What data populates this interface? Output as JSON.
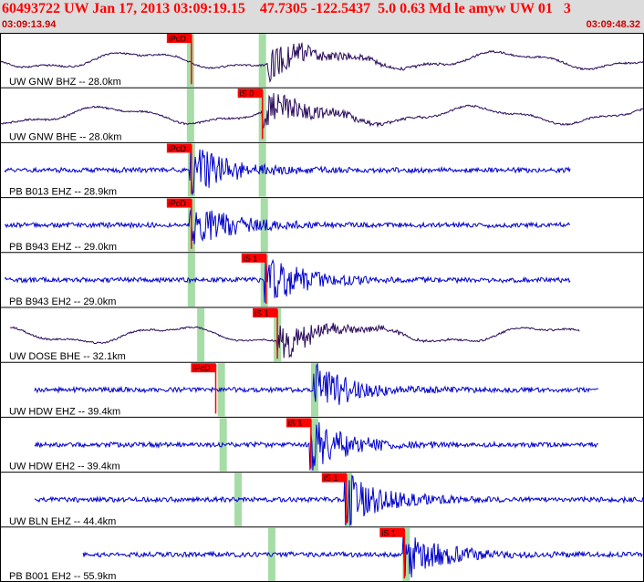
{
  "header": {
    "title": "60493722 UW Jan 17, 2013 03:09:19.15    47.7305 -122.5437  5.0 0.63 Md le amyw UW 01   3",
    "start_time": "03:09:13.94",
    "end_time": "03:09:48.32"
  },
  "colors": {
    "broadband_trace": "#2a0a5a",
    "shortperiod_trace": "#0000cc",
    "pick_marker": "#ff0000",
    "pick_label_bg": "#ff0000",
    "window_band": "#a6dca6",
    "header_bg": "#dcdcdc",
    "title_text": "#ff0000"
  },
  "chart_data": {
    "type": "line",
    "x_range_s": [
      0,
      34.38
    ],
    "traces": [
      {
        "label": "UW GNW BHZ -- 28.0km",
        "kind": "broadband",
        "start_s": 0,
        "end_s": 34.38,
        "pick": {
          "label": "iPcD",
          "time_s": 10.2
        },
        "bands_s": [
          10.15,
          14.0
        ],
        "arrival_s": 14.3
      },
      {
        "label": "UW GNW BHE -- 28.0km",
        "kind": "broadband",
        "start_s": 0,
        "end_s": 34.38,
        "pick": {
          "label": "iS 0",
          "time_s": 14.0
        },
        "bands_s": [
          10.15,
          14.0
        ],
        "arrival_s": 14.0
      },
      {
        "label": "PB B013 EHZ -- 28.9km",
        "kind": "shortperiod",
        "start_s": 0.2,
        "end_s": 30.5,
        "pick": {
          "label": "iPcD",
          "time_s": 10.2
        },
        "bands_s": [
          10.2,
          14.0
        ],
        "arrival_s": 10.2
      },
      {
        "label": "PB B943 EHZ -- 29.0km",
        "kind": "shortperiod",
        "start_s": 0.2,
        "end_s": 30.5,
        "pick": {
          "label": "iPcD",
          "time_s": 10.2
        },
        "bands_s": [
          10.2,
          14.1
        ],
        "arrival_s": 10.2
      },
      {
        "label": "PB B943 EH2 -- 29.0km",
        "kind": "shortperiod",
        "start_s": 0.2,
        "end_s": 30.5,
        "pick": {
          "label": "iS 1",
          "time_s": 14.2
        },
        "bands_s": [
          10.2,
          14.1
        ],
        "arrival_s": 14.2
      },
      {
        "label": "UW DOSE BHE -- 32.1km",
        "kind": "broadband",
        "start_s": 0.5,
        "end_s": 31.0,
        "pick": {
          "label": "iS 1",
          "time_s": 14.8
        },
        "bands_s": [
          10.7,
          14.8
        ],
        "arrival_s": 14.8
      },
      {
        "label": "UW HDW EHZ -- 39.4km",
        "kind": "shortperiod",
        "start_s": 1.8,
        "end_s": 32.0,
        "pick": {
          "label": "iPcD",
          "time_s": 11.5
        },
        "bands_s": [
          11.8,
          16.8
        ],
        "arrival_s": 16.8
      },
      {
        "label": "UW HDW EH2 -- 39.4km",
        "kind": "shortperiod",
        "start_s": 1.8,
        "end_s": 32.0,
        "pick": {
          "label": "iS 1",
          "time_s": 16.6
        },
        "bands_s": [
          11.9,
          16.8
        ],
        "arrival_s": 16.6
      },
      {
        "label": "UW BLN EHZ -- 44.4km",
        "kind": "shortperiod",
        "start_s": 1.8,
        "end_s": 34.38,
        "pick": {
          "label": "iS 1",
          "time_s": 18.5
        },
        "bands_s": [
          12.7,
          18.6
        ],
        "arrival_s": 18.5
      },
      {
        "label": "PB B001 EH2 -- 55.9km",
        "kind": "shortperiod",
        "start_s": 4.4,
        "end_s": 34.38,
        "pick": {
          "label": "iS 1",
          "time_s": 21.6
        },
        "bands_s": [
          14.5,
          21.7
        ],
        "arrival_s": 21.6
      }
    ]
  }
}
